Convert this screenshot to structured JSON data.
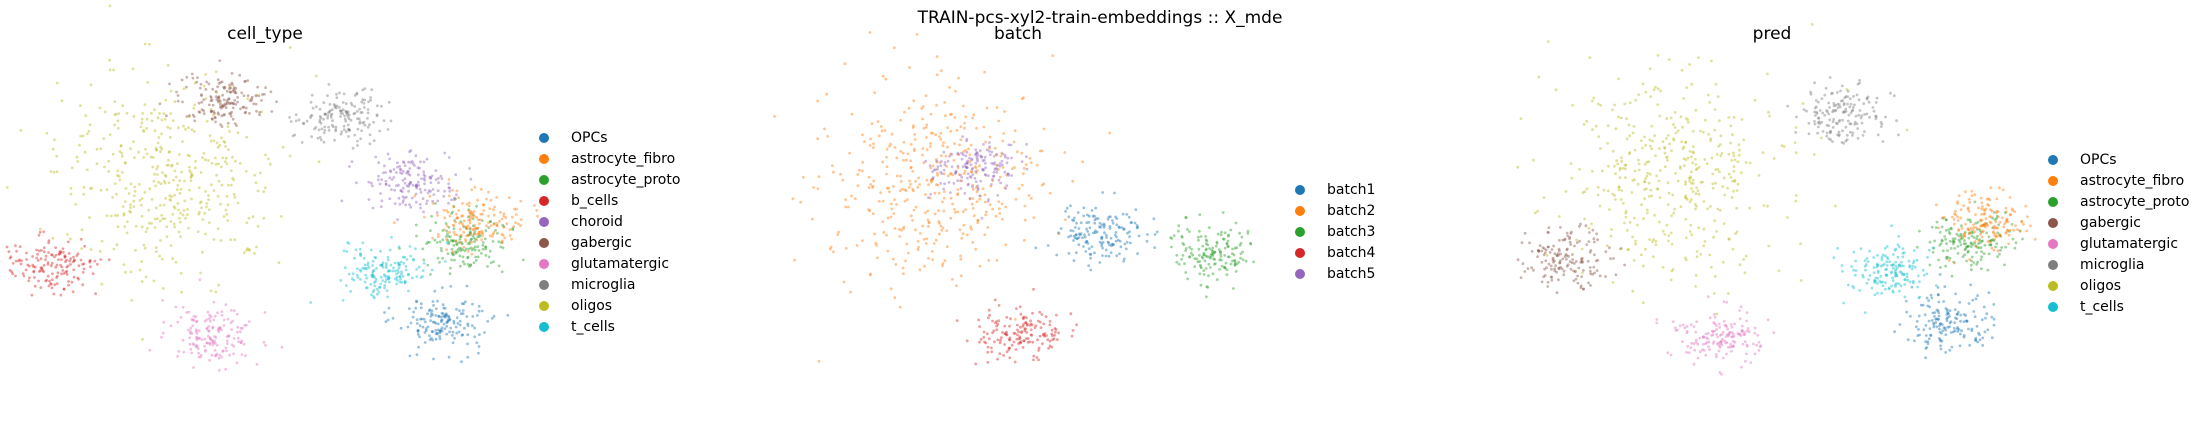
{
  "suptitle": "TRAIN-pcs-xyl2-train-embeddings :: X_mde",
  "colors": {
    "OPCs": "#1f77b4",
    "astrocyte_fibro": "#ff7f0e",
    "astrocyte_proto": "#2ca02c",
    "b_cells": "#d62728",
    "choroid": "#9467bd",
    "gabergic": "#8c564b",
    "glutamatergic": "#e377c2",
    "microglia": "#7f7f7f",
    "oligos": "#bcbd22",
    "t_cells": "#17becf",
    "batch1": "#1f77b4",
    "batch2": "#ff7f0e",
    "batch3": "#2ca02c",
    "batch4": "#d62728",
    "batch5": "#9467bd"
  },
  "chart_data": [
    {
      "type": "scatter",
      "title": "cell_type",
      "xlabel": "",
      "ylabel": "",
      "axes": "off",
      "legend_position": "right",
      "legend": [
        "OPCs",
        "astrocyte_fibro",
        "astrocyte_proto",
        "b_cells",
        "choroid",
        "gabergic",
        "glutamatergic",
        "microglia",
        "oligos",
        "t_cells"
      ],
      "clusters": [
        {
          "label": "oligos",
          "x": -0.45,
          "y": 0.35
        },
        {
          "label": "glutamatergic",
          "x": -0.25,
          "y": -0.72
        },
        {
          "label": "gabergic",
          "x": -0.2,
          "y": 0.85
        },
        {
          "label": "microglia",
          "x": 0.3,
          "y": 0.75
        },
        {
          "label": "astrocyte_proto",
          "x": 0.85,
          "y": -0.1
        },
        {
          "label": "astrocyte_fibro",
          "x": 0.9,
          "y": 0.05
        },
        {
          "label": "OPCs",
          "x": 0.75,
          "y": -0.62
        },
        {
          "label": "choroid",
          "x": 0.6,
          "y": 0.3
        },
        {
          "label": "b_cells",
          "x": -0.95,
          "y": -0.25
        },
        {
          "label": "t_cells",
          "x": 0.5,
          "y": -0.3
        }
      ]
    },
    {
      "type": "scatter",
      "title": "batch",
      "xlabel": "",
      "ylabel": "",
      "axes": "off",
      "legend_position": "right",
      "legend": [
        "batch1",
        "batch2",
        "batch3",
        "batch4",
        "batch5"
      ],
      "clusters": [
        {
          "label": "batch2",
          "x": -0.4,
          "y": 0.3
        },
        {
          "label": "batch5",
          "x": -0.2,
          "y": 0.4
        },
        {
          "label": "batch1",
          "x": 0.35,
          "y": -0.05
        },
        {
          "label": "batch4",
          "x": 0.0,
          "y": -0.7
        },
        {
          "label": "batch3",
          "x": 0.85,
          "y": -0.15
        }
      ]
    },
    {
      "type": "scatter",
      "title": "pred",
      "xlabel": "",
      "ylabel": "",
      "axes": "off",
      "legend_position": "right",
      "legend": [
        "OPCs",
        "astrocyte_fibro",
        "astrocyte_proto",
        "gabergic",
        "glutamatergic",
        "microglia",
        "oligos",
        "t_cells"
      ],
      "clusters": [
        {
          "label": "oligos",
          "x": -0.45,
          "y": 0.35
        },
        {
          "label": "glutamatergic",
          "x": -0.25,
          "y": -0.72
        },
        {
          "label": "gabergic",
          "x": -0.9,
          "y": -0.2
        },
        {
          "label": "microglia",
          "x": 0.3,
          "y": 0.75
        },
        {
          "label": "astrocyte_proto",
          "x": 0.85,
          "y": -0.1
        },
        {
          "label": "astrocyte_fibro",
          "x": 0.9,
          "y": 0.05
        },
        {
          "label": "OPCs",
          "x": 0.75,
          "y": -0.62
        },
        {
          "label": "t_cells",
          "x": 0.5,
          "y": -0.3
        }
      ]
    }
  ]
}
